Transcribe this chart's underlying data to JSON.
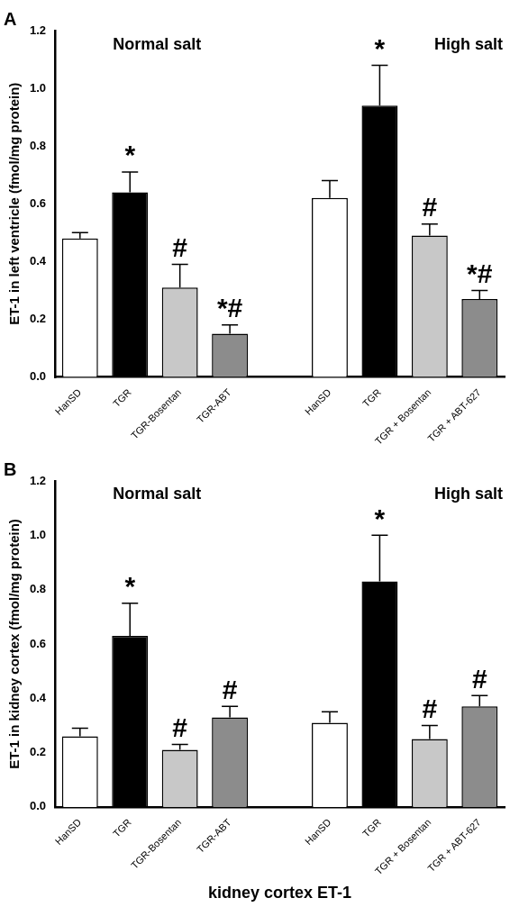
{
  "chart_data": [
    {
      "type": "bar",
      "title": "A",
      "ylabel": "ET-1 in left ventricle (fmol/mg protein)",
      "categories": [
        "HanSD",
        "TGR",
        "TGR-Bosentan",
        "TGR-ABT",
        null,
        "HanSD",
        "TGR",
        "TGR + Bosentan",
        "TGR + ABT-627"
      ],
      "values": [
        0.48,
        0.64,
        0.31,
        0.15,
        null,
        0.62,
        0.94,
        0.49,
        0.27
      ],
      "colors": [
        "#ffffff",
        "#000000",
        "#c8c8c8",
        "#8c8c8c",
        "#ffffff",
        "#ffffff",
        "#000000",
        "#c8c8c8",
        "#8c8c8c"
      ],
      "errors": [
        [
          0.48,
          0.5
        ],
        [
          0.64,
          0.71
        ],
        [
          0.31,
          0.39
        ],
        [
          0.15,
          0.18
        ],
        null,
        [
          0.62,
          0.68
        ],
        [
          0.94,
          1.08
        ],
        [
          0.49,
          0.53
        ],
        [
          0.27,
          0.3
        ]
      ],
      "value_labels": [
        null,
        "*",
        "#",
        "*#",
        null,
        null,
        "*",
        "#",
        "*#"
      ],
      "annotations": [
        "Normal salt",
        "High salt"
      ],
      "ylim": [
        0,
        1.2
      ],
      "yticks": [
        {
          "value": 0,
          "label": "0.0"
        },
        {
          "value": 0.2,
          "label": "0.2"
        },
        {
          "value": 0.4,
          "label": "0.4"
        },
        {
          "value": 0.6,
          "label": "0.6"
        },
        {
          "value": 0.8,
          "label": "0.8"
        },
        {
          "value": 1,
          "label": "1.0"
        },
        {
          "value": 1.2,
          "label": "1.2"
        }
      ],
      "grid": false,
      "legend": false
    },
    {
      "type": "bar",
      "title": "B",
      "ylabel": "ET-1 in kidney cortex (fmol/mg protein)",
      "xlabel": "kidney cortex ET-1",
      "categories": [
        "HanSD",
        "TGR",
        "TGR-Bosentan",
        "TGR-ABT",
        null,
        "HanSD",
        "TGR",
        "TGR + Bosentan",
        "TGR + ABT-627"
      ],
      "values": [
        0.26,
        0.63,
        0.21,
        0.33,
        null,
        0.31,
        0.83,
        0.25,
        0.37
      ],
      "colors": [
        "#ffffff",
        "#000000",
        "#c8c8c8",
        "#8c8c8c",
        "#ffffff",
        "#ffffff",
        "#000000",
        "#c8c8c8",
        "#8c8c8c"
      ],
      "errors": [
        [
          0.26,
          0.29
        ],
        [
          0.63,
          0.75
        ],
        [
          0.21,
          0.23
        ],
        [
          0.33,
          0.37
        ],
        null,
        [
          0.31,
          0.35
        ],
        [
          0.83,
          1.0
        ],
        [
          0.25,
          0.3
        ],
        [
          0.37,
          0.41
        ]
      ],
      "value_labels": [
        null,
        "*",
        "#",
        "#",
        null,
        null,
        "*",
        "#",
        "#"
      ],
      "annotations": [
        "Normal salt",
        "High salt"
      ],
      "ylim": [
        0,
        1.2
      ],
      "yticks": [
        {
          "value": 0,
          "label": "0.0"
        },
        {
          "value": 0.2,
          "label": "0.2"
        },
        {
          "value": 0.4,
          "label": "0.4"
        },
        {
          "value": 0.6,
          "label": "0.6"
        },
        {
          "value": 0.8,
          "label": "0.8"
        },
        {
          "value": 1,
          "label": "1.0"
        },
        {
          "value": 1.2,
          "label": "1.2"
        }
      ],
      "grid": false,
      "legend": false
    }
  ]
}
